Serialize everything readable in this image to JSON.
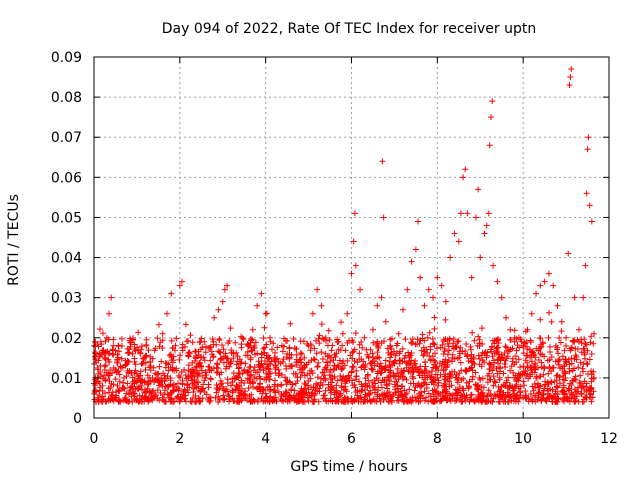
{
  "chart_data": {
    "type": "scatter",
    "title": "Day 094 of 2022, Rate Of TEC Index for receiver uptn",
    "xlabel": "GPS time / hours",
    "ylabel": "ROTI / TECUs",
    "xlim": [
      0,
      12
    ],
    "ylim": [
      0,
      0.09
    ],
    "x_ticks": [
      0,
      2,
      4,
      6,
      8,
      10,
      12
    ],
    "x_tick_labels": [
      "0",
      "2",
      "4",
      "6",
      "8",
      "10",
      "12"
    ],
    "y_ticks": [
      0,
      0.01,
      0.02,
      0.03,
      0.04,
      0.05,
      0.06,
      0.07,
      0.08,
      0.09
    ],
    "y_tick_labels": [
      "0",
      "0.01",
      "0.02",
      "0.03",
      "0.04",
      "0.05",
      "0.06",
      "0.07",
      "0.08",
      "0.09"
    ],
    "grid": true,
    "marker": "plus",
    "color": "#ff0000",
    "series": [
      {
        "name": "ROTI",
        "points": [
          [
            0.05,
            0.009
          ],
          [
            0.1,
            0.011
          ],
          [
            0.15,
            0.013
          ],
          [
            0.2,
            0.008
          ],
          [
            0.25,
            0.015
          ],
          [
            0.3,
            0.02
          ],
          [
            0.35,
            0.026
          ],
          [
            0.4,
            0.03
          ],
          [
            0.45,
            0.018
          ],
          [
            0.5,
            0.012
          ],
          [
            0.6,
            0.009
          ],
          [
            0.7,
            0.01
          ],
          [
            0.8,
            0.014
          ],
          [
            0.9,
            0.016
          ],
          [
            1.0,
            0.011
          ],
          [
            1.1,
            0.008
          ],
          [
            1.2,
            0.012
          ],
          [
            1.3,
            0.01
          ],
          [
            1.4,
            0.009
          ],
          [
            1.5,
            0.011
          ],
          [
            1.6,
            0.021
          ],
          [
            1.7,
            0.026
          ],
          [
            1.8,
            0.031
          ],
          [
            1.9,
            0.018
          ],
          [
            2.0,
            0.033
          ],
          [
            2.05,
            0.034
          ],
          [
            2.1,
            0.012
          ],
          [
            2.2,
            0.01
          ],
          [
            2.3,
            0.011
          ],
          [
            2.4,
            0.009
          ],
          [
            2.5,
            0.013
          ],
          [
            2.6,
            0.01
          ],
          [
            2.7,
            0.012
          ],
          [
            2.8,
            0.025
          ],
          [
            2.9,
            0.027
          ],
          [
            3.0,
            0.029
          ],
          [
            3.05,
            0.032
          ],
          [
            3.1,
            0.033
          ],
          [
            3.2,
            0.014
          ],
          [
            3.3,
            0.01
          ],
          [
            3.4,
            0.011
          ],
          [
            3.5,
            0.012
          ],
          [
            3.6,
            0.018
          ],
          [
            3.7,
            0.022
          ],
          [
            3.8,
            0.028
          ],
          [
            3.9,
            0.031
          ],
          [
            4.0,
            0.026
          ],
          [
            4.1,
            0.02
          ],
          [
            4.2,
            0.015
          ],
          [
            4.3,
            0.012
          ],
          [
            4.4,
            0.014
          ],
          [
            4.5,
            0.016
          ],
          [
            4.6,
            0.013
          ],
          [
            4.7,
            0.011
          ],
          [
            4.8,
            0.012
          ],
          [
            4.9,
            0.015
          ],
          [
            5.0,
            0.018
          ],
          [
            5.1,
            0.026
          ],
          [
            5.2,
            0.032
          ],
          [
            5.3,
            0.028
          ],
          [
            5.4,
            0.02
          ],
          [
            5.5,
            0.014
          ],
          [
            5.6,
            0.013
          ],
          [
            5.7,
            0.017
          ],
          [
            5.8,
            0.021
          ],
          [
            5.9,
            0.026
          ],
          [
            6.0,
            0.036
          ],
          [
            6.05,
            0.044
          ],
          [
            6.08,
            0.051
          ],
          [
            6.1,
            0.038
          ],
          [
            6.2,
            0.032
          ],
          [
            6.3,
            0.02
          ],
          [
            6.4,
            0.015
          ],
          [
            6.5,
            0.022
          ],
          [
            6.6,
            0.028
          ],
          [
            6.7,
            0.03
          ],
          [
            6.72,
            0.064
          ],
          [
            6.75,
            0.05
          ],
          [
            6.8,
            0.024
          ],
          [
            6.9,
            0.018
          ],
          [
            7.0,
            0.014
          ],
          [
            7.1,
            0.021
          ],
          [
            7.2,
            0.027
          ],
          [
            7.3,
            0.032
          ],
          [
            7.4,
            0.039
          ],
          [
            7.5,
            0.042
          ],
          [
            7.55,
            0.049
          ],
          [
            7.6,
            0.035
          ],
          [
            7.7,
            0.028
          ],
          [
            7.8,
            0.032
          ],
          [
            7.9,
            0.03
          ],
          [
            8.0,
            0.035
          ],
          [
            8.1,
            0.033
          ],
          [
            8.2,
            0.029
          ],
          [
            8.3,
            0.04
          ],
          [
            8.4,
            0.046
          ],
          [
            8.5,
            0.044
          ],
          [
            8.55,
            0.051
          ],
          [
            8.6,
            0.06
          ],
          [
            8.65,
            0.062
          ],
          [
            8.7,
            0.051
          ],
          [
            8.8,
            0.035
          ],
          [
            8.9,
            0.05
          ],
          [
            8.95,
            0.057
          ],
          [
            9.0,
            0.04
          ],
          [
            9.1,
            0.046
          ],
          [
            9.15,
            0.048
          ],
          [
            9.2,
            0.051
          ],
          [
            9.22,
            0.068
          ],
          [
            9.25,
            0.075
          ],
          [
            9.28,
            0.079
          ],
          [
            9.3,
            0.038
          ],
          [
            9.4,
            0.034
          ],
          [
            9.5,
            0.03
          ],
          [
            9.6,
            0.025
          ],
          [
            9.7,
            0.022
          ],
          [
            9.8,
            0.019
          ],
          [
            9.9,
            0.02
          ],
          [
            10.0,
            0.018
          ],
          [
            10.1,
            0.022
          ],
          [
            10.2,
            0.026
          ],
          [
            10.3,
            0.031
          ],
          [
            10.4,
            0.033
          ],
          [
            10.5,
            0.034
          ],
          [
            10.6,
            0.036
          ],
          [
            10.7,
            0.033
          ],
          [
            10.8,
            0.028
          ],
          [
            10.9,
            0.024
          ],
          [
            11.0,
            0.02
          ],
          [
            11.05,
            0.041
          ],
          [
            11.08,
            0.083
          ],
          [
            11.1,
            0.085
          ],
          [
            11.12,
            0.087
          ],
          [
            11.2,
            0.03
          ],
          [
            11.3,
            0.022
          ],
          [
            11.4,
            0.03
          ],
          [
            11.45,
            0.038
          ],
          [
            11.48,
            0.056
          ],
          [
            11.5,
            0.067
          ],
          [
            11.52,
            0.07
          ],
          [
            11.55,
            0.053
          ],
          [
            11.6,
            0.049
          ],
          [
            11.65,
            0.021
          ]
        ]
      }
    ]
  }
}
